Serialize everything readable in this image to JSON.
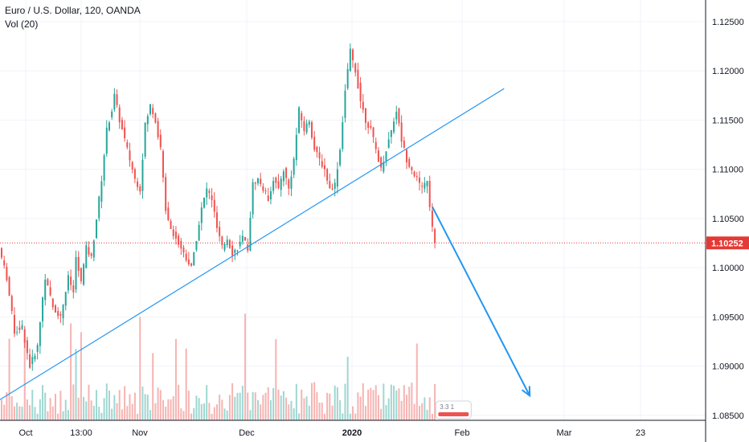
{
  "legend": {
    "symbol_line": "Euro / U.S. Dollar, 120, OANDA",
    "indicator_line": "Vol (20)"
  },
  "colors": {
    "up": "#26a69a",
    "down": "#ef5350",
    "vol_up": "#9fd7d1",
    "vol_down": "#f5b4b2",
    "trendline": "#2196f3",
    "price_line": "#e53935",
    "grid": "#f0f3fa",
    "axis_border": "#131722"
  },
  "chart_data": {
    "type": "candlestick",
    "symbol": "EURUSD",
    "timeframe": "120",
    "y_axis_ticks": [
      "1.08500",
      "1.09000",
      "1.09500",
      "1.10000",
      "1.10500",
      "1.11000",
      "1.11500",
      "1.12000",
      "1.12500"
    ],
    "ylim": [
      1.0845,
      1.1272
    ],
    "x_axis_ticks": [
      "Oct",
      "13:00",
      "Nov",
      "Dec",
      "2020",
      "Feb",
      "Mar",
      "23"
    ],
    "current_price": "1.10252",
    "volume_badge": "3.3  1",
    "price_path": [
      [
        0,
        1.102
      ],
      [
        3,
        1.099
      ],
      [
        6,
        1.0935
      ],
      [
        9,
        1.094
      ],
      [
        12,
        1.09
      ],
      [
        15,
        1.092
      ],
      [
        17,
        1.097
      ],
      [
        18,
        1.099
      ],
      [
        21,
        1.096
      ],
      [
        24,
        1.095
      ],
      [
        27,
        1.099
      ],
      [
        29,
        1.0975
      ],
      [
        30,
        1.101
      ],
      [
        32,
        1.0985
      ],
      [
        34,
        1.102
      ],
      [
        36,
        1.101
      ],
      [
        38,
        1.105
      ],
      [
        40,
        1.109
      ],
      [
        42,
        1.114
      ],
      [
        44,
        1.116
      ],
      [
        45,
        1.1175
      ],
      [
        47,
        1.115
      ],
      [
        49,
        1.113
      ],
      [
        51,
        1.111
      ],
      [
        53,
        1.109
      ],
      [
        55,
        1.108
      ],
      [
        57,
        1.1145
      ],
      [
        59,
        1.1165
      ],
      [
        61,
        1.115
      ],
      [
        63,
        1.112
      ],
      [
        65,
        1.106
      ],
      [
        67,
        1.104
      ],
      [
        69,
        1.103
      ],
      [
        71,
        1.102
      ],
      [
        73,
        1.101
      ],
      [
        75,
        1.1
      ],
      [
        77,
        1.103
      ],
      [
        79,
        1.106
      ],
      [
        81,
        1.108
      ],
      [
        83,
        1.107
      ],
      [
        85,
        1.104
      ],
      [
        87,
        1.102
      ],
      [
        89,
        1.103
      ],
      [
        91,
        1.1015
      ],
      [
        93,
        1.102
      ],
      [
        95,
        1.103
      ],
      [
        97,
        1.102
      ],
      [
        99,
        1.1085
      ],
      [
        101,
        1.109
      ],
      [
        103,
        1.108
      ],
      [
        105,
        1.107
      ],
      [
        107,
        1.109
      ],
      [
        109,
        1.108
      ],
      [
        111,
        1.11
      ],
      [
        113,
        1.108
      ],
      [
        115,
        1.111
      ],
      [
        117,
        1.116
      ],
      [
        119,
        1.114
      ],
      [
        121,
        1.115
      ],
      [
        123,
        1.112
      ],
      [
        125,
        1.111
      ],
      [
        127,
        1.11
      ],
      [
        129,
        1.108
      ],
      [
        131,
        1.1085
      ],
      [
        133,
        1.112
      ],
      [
        135,
        1.118
      ],
      [
        137,
        1.122
      ],
      [
        139,
        1.12
      ],
      [
        141,
        1.117
      ],
      [
        143,
        1.115
      ],
      [
        145,
        1.114
      ],
      [
        147,
        1.112
      ],
      [
        149,
        1.11
      ],
      [
        151,
        1.112
      ],
      [
        153,
        1.114
      ],
      [
        155,
        1.116
      ],
      [
        157,
        1.113
      ],
      [
        159,
        1.111
      ],
      [
        161,
        1.11
      ],
      [
        163,
        1.109
      ],
      [
        165,
        1.108
      ],
      [
        167,
        1.109
      ],
      [
        168,
        1.106
      ],
      [
        169,
        1.104
      ],
      [
        170,
        1.1025
      ]
    ],
    "annotations": [
      {
        "type": "trendline",
        "from": [
          0,
          1.0866
        ],
        "to": [
          196,
          1.1182
        ]
      },
      {
        "type": "arrow",
        "from": [
          168,
          1.1062
        ],
        "to": [
          206,
          1.087
        ]
      }
    ]
  }
}
